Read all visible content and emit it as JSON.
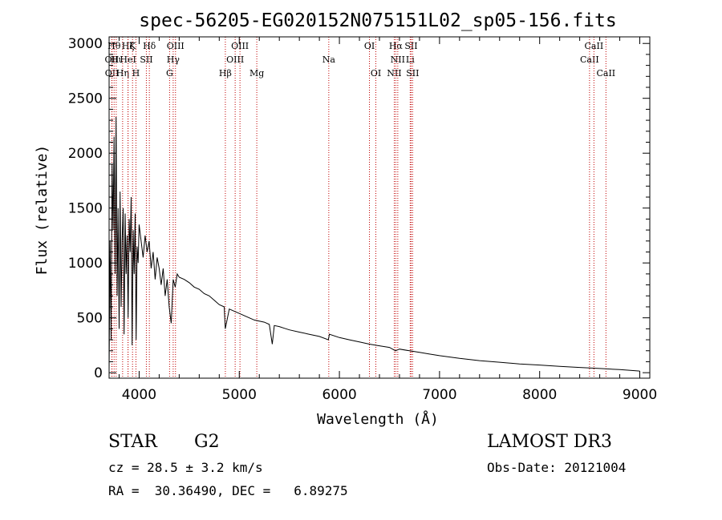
{
  "chart_data": {
    "type": "line",
    "title": "spec-56205-EG020152N075151L02_sp05-156.fits",
    "xlabel": "Wavelength (Å)",
    "ylabel": "Flux (relative)",
    "xlim": [
      3700,
      9100
    ],
    "ylim": [
      -50,
      3060
    ],
    "xticks": [
      4000,
      5000,
      6000,
      7000,
      8000,
      9000
    ],
    "yticks": [
      0,
      500,
      1000,
      1500,
      2000,
      2500,
      3000
    ],
    "grid": false,
    "series": [
      {
        "name": "spectrum",
        "color": "#000000",
        "x": [
          3700,
          3710,
          3720,
          3730,
          3740,
          3750,
          3760,
          3770,
          3780,
          3790,
          3800,
          3810,
          3820,
          3830,
          3840,
          3850,
          3860,
          3870,
          3880,
          3890,
          3900,
          3910,
          3920,
          3930,
          3940,
          3950,
          3960,
          3970,
          3980,
          3990,
          4000,
          4020,
          4040,
          4060,
          4080,
          4100,
          4120,
          4140,
          4160,
          4180,
          4200,
          4220,
          4240,
          4260,
          4280,
          4300,
          4320,
          4340,
          4360,
          4380,
          4400,
          4450,
          4500,
          4550,
          4600,
          4650,
          4700,
          4750,
          4800,
          4850,
          4860,
          4900,
          4950,
          5000,
          5050,
          5100,
          5150,
          5200,
          5250,
          5300,
          5330,
          5350,
          5400,
          5450,
          5500,
          5600,
          5700,
          5800,
          5890,
          5900,
          6000,
          6100,
          6200,
          6300,
          6400,
          6500,
          6560,
          6600,
          6700,
          6800,
          6900,
          7000,
          7200,
          7400,
          7600,
          7800,
          8000,
          8200,
          8400,
          8600,
          8800,
          9000
        ],
        "values": [
          20,
          1200,
          300,
          1900,
          1300,
          2150,
          900,
          2330,
          700,
          1500,
          400,
          1650,
          600,
          1200,
          1500,
          350,
          1450,
          900,
          1250,
          500,
          1400,
          1100,
          1600,
          250,
          1300,
          900,
          1450,
          300,
          1150,
          1000,
          1350,
          1200,
          1050,
          1250,
          1100,
          1200,
          950,
          1100,
          850,
          1050,
          950,
          800,
          950,
          700,
          850,
          600,
          450,
          850,
          780,
          900,
          870,
          850,
          820,
          780,
          760,
          720,
          700,
          660,
          620,
          600,
          400,
          580,
          560,
          540,
          520,
          500,
          480,
          470,
          460,
          440,
          260,
          430,
          420,
          405,
          390,
          370,
          350,
          330,
          300,
          350,
          320,
          300,
          280,
          260,
          245,
          230,
          200,
          215,
          200,
          185,
          170,
          155,
          130,
          110,
          95,
          80,
          70,
          58,
          48,
          38,
          28,
          15
        ]
      }
    ],
    "line_markers": [
      {
        "x": 3727,
        "label": "OII",
        "row": 2
      },
      {
        "x": 3729,
        "label": "OII",
        "row": 3
      },
      {
        "x": 3750,
        "label": "Hθ",
        "row": 1
      },
      {
        "x": 3771,
        "label": "Hι",
        "row": 2
      },
      {
        "x": 3835,
        "label": "Hη",
        "row": 3
      },
      {
        "x": 3889,
        "label": "Hζ",
        "row": 1
      },
      {
        "x": 3889,
        "label": "HeI",
        "row": 2
      },
      {
        "x": 3934,
        "label": "K",
        "row": 1
      },
      {
        "x": 3968,
        "label": "H",
        "row": 3
      },
      {
        "x": 4072,
        "label": "SII",
        "row": 2
      },
      {
        "x": 4102,
        "label": "Hδ",
        "row": 1
      },
      {
        "x": 4304,
        "label": "G",
        "row": 3
      },
      {
        "x": 4340,
        "label": "Hγ",
        "row": 2
      },
      {
        "x": 4363,
        "label": "OIII",
        "row": 1
      },
      {
        "x": 4861,
        "label": "Hβ",
        "row": 3
      },
      {
        "x": 4959,
        "label": "OIII",
        "row": 2
      },
      {
        "x": 5007,
        "label": "OIII",
        "row": 1
      },
      {
        "x": 5175,
        "label": "Mg",
        "row": 3
      },
      {
        "x": 5894,
        "label": "Na",
        "row": 2
      },
      {
        "x": 6300,
        "label": "OI",
        "row": 1
      },
      {
        "x": 6364,
        "label": "OI",
        "row": 3
      },
      {
        "x": 6548,
        "label": "NII",
        "row": 3
      },
      {
        "x": 6563,
        "label": "Hα",
        "row": 1
      },
      {
        "x": 6583,
        "label": "NII",
        "row": 2
      },
      {
        "x": 6707,
        "label": "Li",
        "row": 2
      },
      {
        "x": 6716,
        "label": "SII",
        "row": 1
      },
      {
        "x": 6731,
        "label": "SII",
        "row": 3
      },
      {
        "x": 8498,
        "label": "CaII",
        "row": 2
      },
      {
        "x": 8542,
        "label": "CaII",
        "row": 1
      },
      {
        "x": 8662,
        "label": "CaII",
        "row": 3
      }
    ],
    "marker_color": "#c00000"
  },
  "info": {
    "object_type": "STAR",
    "subclass": "G2",
    "velocity": "cz = 28.5 ± 3.2 km/s",
    "coords": "RA =  30.36490, DEC =   6.89275",
    "survey": "LAMOST DR3",
    "obs_date": "Obs-Date: 20121004"
  }
}
